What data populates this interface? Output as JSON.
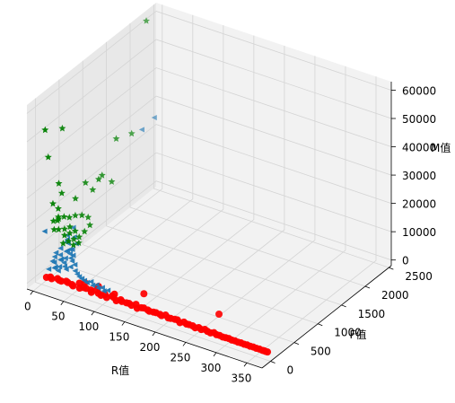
{
  "chart_data": {
    "type": "scatter",
    "projection": "3d",
    "title": "",
    "xlabel": "R值",
    "ylabel": "F值",
    "zlabel": "M值",
    "xlim": [
      -10,
      375
    ],
    "ylim": [
      -180,
      2550
    ],
    "zlim": [
      -2000,
      63000
    ],
    "x_ticks": [
      0,
      50,
      100,
      150,
      200,
      250,
      300,
      350
    ],
    "y_ticks": [
      0,
      500,
      1000,
      1500,
      2000,
      2500
    ],
    "z_ticks": [
      0,
      10000,
      20000,
      30000,
      40000,
      50000,
      60000
    ],
    "grid": true,
    "legend": "none",
    "series": [
      {
        "marker": "circle",
        "color": "#ff0000",
        "points": [
          [
            5,
            40,
            300
          ],
          [
            10,
            60,
            500
          ],
          [
            15,
            20,
            800
          ],
          [
            20,
            80,
            400
          ],
          [
            25,
            50,
            600
          ],
          [
            30,
            30,
            900
          ],
          [
            35,
            70,
            700
          ],
          [
            40,
            40,
            1000
          ],
          [
            45,
            60,
            400
          ],
          [
            50,
            20,
            800
          ],
          [
            55,
            90,
            1200
          ],
          [
            60,
            30,
            600
          ],
          [
            65,
            50,
            900
          ],
          [
            70,
            40,
            1100
          ],
          [
            75,
            70,
            500
          ],
          [
            80,
            20,
            700
          ],
          [
            85,
            60,
            1300
          ],
          [
            90,
            40,
            800
          ],
          [
            95,
            30,
            600
          ],
          [
            100,
            50,
            1000
          ],
          [
            105,
            20,
            700
          ],
          [
            110,
            70,
            900
          ],
          [
            115,
            40,
            1200
          ],
          [
            120,
            30,
            500
          ],
          [
            125,
            60,
            800
          ],
          [
            130,
            20,
            1100
          ],
          [
            135,
            50,
            600
          ],
          [
            140,
            40,
            900
          ],
          [
            145,
            30,
            700
          ],
          [
            150,
            60,
            1000
          ],
          [
            155,
            20,
            500
          ],
          [
            160,
            40,
            800
          ],
          [
            165,
            30,
            1200
          ],
          [
            170,
            50,
            600
          ],
          [
            175,
            20,
            900
          ],
          [
            180,
            40,
            700
          ],
          [
            185,
            30,
            1000
          ],
          [
            190,
            50,
            500
          ],
          [
            195,
            20,
            800
          ],
          [
            200,
            40,
            1100
          ],
          [
            205,
            30,
            600
          ],
          [
            210,
            20,
            900
          ],
          [
            215,
            40,
            700
          ],
          [
            220,
            30,
            1000
          ],
          [
            225,
            20,
            500
          ],
          [
            230,
            40,
            800
          ],
          [
            235,
            30,
            600
          ],
          [
            240,
            20,
            900
          ],
          [
            245,
            30,
            700
          ],
          [
            250,
            20,
            500
          ],
          [
            255,
            30,
            800
          ],
          [
            260,
            20,
            600
          ],
          [
            265,
            30,
            900
          ],
          [
            270,
            20,
            700
          ],
          [
            275,
            20,
            500
          ],
          [
            280,
            30,
            800
          ],
          [
            285,
            20,
            600
          ],
          [
            290,
            20,
            700
          ],
          [
            295,
            20,
            500
          ],
          [
            300,
            20,
            600
          ],
          [
            305,
            20,
            700
          ],
          [
            310,
            20,
            500
          ],
          [
            315,
            20,
            600
          ],
          [
            320,
            20,
            500
          ],
          [
            325,
            20,
            600
          ],
          [
            330,
            20,
            500
          ],
          [
            335,
            20,
            600
          ],
          [
            340,
            20,
            500
          ],
          [
            345,
            20,
            600
          ],
          [
            350,
            20,
            500
          ],
          [
            355,
            20,
            600
          ],
          [
            360,
            20,
            500
          ],
          [
            362,
            30,
            400
          ],
          [
            365,
            20,
            500
          ],
          [
            368,
            25,
            450
          ],
          [
            258,
            420,
            600
          ],
          [
            142,
            330,
            600
          ],
          [
            80,
            170,
            800
          ],
          [
            60,
            140,
            1100
          ],
          [
            110,
            120,
            900
          ]
        ]
      },
      {
        "marker": "triangle-left",
        "color": "#1f77b4",
        "points": [
          [
            3,
            120,
            2000
          ],
          [
            6,
            200,
            3500
          ],
          [
            8,
            300,
            5000
          ],
          [
            10,
            150,
            2500
          ],
          [
            12,
            250,
            4200
          ],
          [
            14,
            350,
            6000
          ],
          [
            16,
            180,
            3000
          ],
          [
            18,
            280,
            4800
          ],
          [
            20,
            400,
            6500
          ],
          [
            5,
            220,
            5200
          ],
          [
            7,
            320,
            7000
          ],
          [
            9,
            420,
            8200
          ],
          [
            11,
            160,
            2800
          ],
          [
            13,
            260,
            4400
          ],
          [
            15,
            360,
            6200
          ],
          [
            17,
            140,
            2200
          ],
          [
            19,
            240,
            3800
          ],
          [
            21,
            340,
            5800
          ],
          [
            23,
            200,
            3300
          ],
          [
            25,
            300,
            5100
          ],
          [
            27,
            180,
            2900
          ],
          [
            29,
            280,
            4600
          ],
          [
            4,
            500,
            9000
          ],
          [
            6,
            600,
            10500
          ],
          [
            8,
            450,
            8500
          ],
          [
            31,
            220,
            3500
          ],
          [
            35,
            260,
            4000
          ],
          [
            40,
            200,
            3000
          ],
          [
            45,
            180,
            2500
          ],
          [
            50,
            160,
            2200
          ],
          [
            55,
            150,
            2000
          ],
          [
            60,
            140,
            1800
          ],
          [
            65,
            130,
            1600
          ],
          [
            70,
            150,
            2000
          ],
          [
            75,
            120,
            1500
          ],
          [
            80,
            140,
            1700
          ],
          [
            85,
            110,
            1400
          ],
          [
            90,
            130,
            1600
          ],
          [
            95,
            100,
            1200
          ],
          [
            100,
            120,
            1500
          ],
          [
            2,
            2100,
            25000
          ],
          [
            3,
            2350,
            26000
          ],
          [
            1,
            60,
            16000
          ],
          [
            4,
            260,
            6000
          ],
          [
            6,
            160,
            4500
          ],
          [
            10,
            440,
            7400
          ],
          [
            14,
            520,
            8800
          ],
          [
            18,
            380,
            6600
          ],
          [
            22,
            460,
            7900
          ],
          [
            26,
            340,
            5600
          ]
        ]
      },
      {
        "marker": "star",
        "color": "#008000",
        "points": [
          [
            1,
            2200,
            62000
          ],
          [
            2,
            50,
            52000
          ],
          [
            3,
            400,
            48000
          ],
          [
            4,
            90,
            42000
          ],
          [
            5,
            300,
            30000
          ],
          [
            6,
            350,
            26000
          ],
          [
            7,
            150,
            25000
          ],
          [
            8,
            250,
            22000
          ],
          [
            9,
            600,
            21000
          ],
          [
            10,
            800,
            24000
          ],
          [
            11,
            220,
            19000
          ],
          [
            12,
            320,
            18500
          ],
          [
            13,
            420,
            17000
          ],
          [
            14,
            180,
            16000
          ],
          [
            15,
            520,
            16500
          ],
          [
            16,
            280,
            15000
          ],
          [
            17,
            380,
            14500
          ],
          [
            18,
            620,
            15500
          ],
          [
            19,
            240,
            13500
          ],
          [
            20,
            340,
            13000
          ],
          [
            21,
            440,
            12500
          ],
          [
            22,
            700,
            14000
          ],
          [
            23,
            160,
            12000
          ],
          [
            24,
            260,
            11500
          ],
          [
            25,
            360,
            11000
          ],
          [
            26,
            460,
            10500
          ],
          [
            27,
            560,
            11200
          ],
          [
            28,
            660,
            12200
          ],
          [
            29,
            300,
            10000
          ],
          [
            30,
            400,
            9500
          ],
          [
            12,
            200,
            20000
          ],
          [
            14,
            900,
            20500
          ],
          [
            16,
            1000,
            23000
          ],
          [
            6,
            1500,
            30000
          ],
          [
            8,
            1800,
            28000
          ],
          [
            10,
            1150,
            22000
          ],
          [
            18,
            1250,
            19000
          ],
          [
            4,
            200,
            18000
          ],
          [
            6,
            260,
            17500
          ],
          [
            9,
            150,
            16000
          ]
        ]
      }
    ]
  }
}
